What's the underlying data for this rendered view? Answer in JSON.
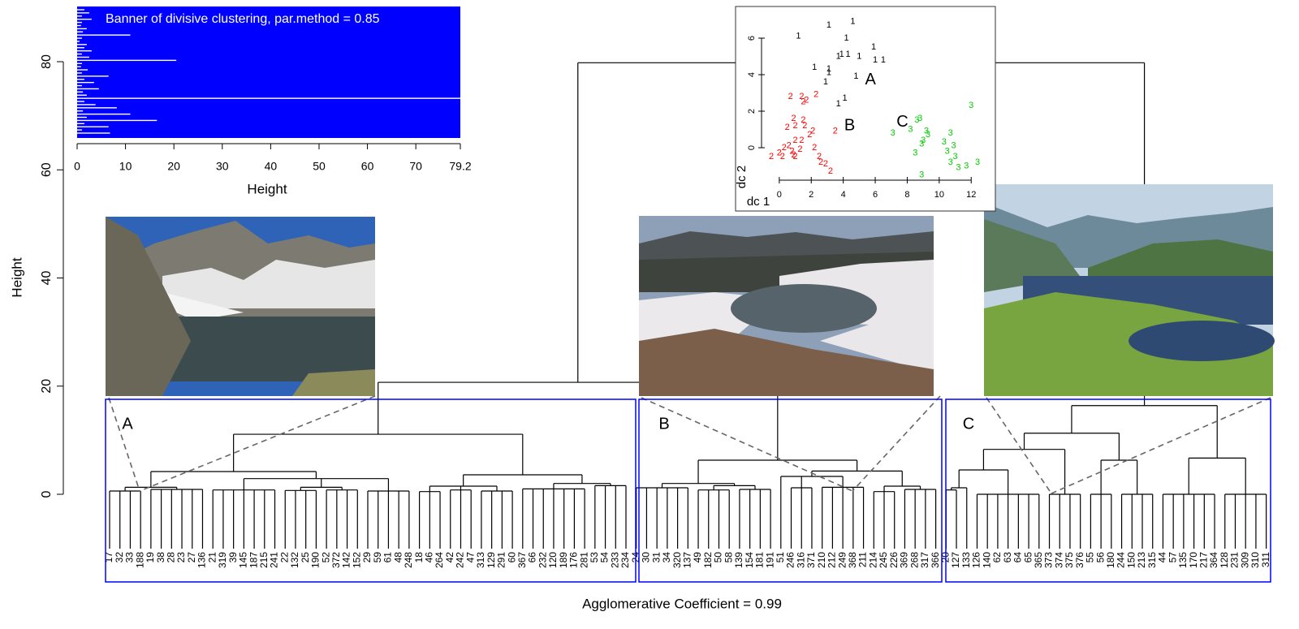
{
  "chart_data": [
    {
      "type": "dendrogram",
      "ylabel": "Height",
      "xlabel": "Agglomerative Coefficient =  0.99",
      "ylim": [
        0,
        80
      ],
      "yticks": [
        0,
        20,
        40,
        60,
        80
      ],
      "color": "#000000",
      "cluster_labels": [
        "A",
        "B",
        "C"
      ],
      "tree": {
        "height": 79.8,
        "children": [
          {
            "height": 20.7,
            "children": [
              {
                "height": 11.1,
                "children": [
                  {
                    "height": 4.2,
                    "children": [
                      {
                        "height": 1.3,
                        "children": [
                          {
                            "height": 0.6,
                            "children": [
                              "17",
                              "32",
                              "33",
                              "188"
                            ]
                          },
                          {
                            "height": 0.9,
                            "children": [
                              "19",
                              "38",
                              "28",
                              "23",
                              "27",
                              "136"
                            ]
                          }
                        ]
                      },
                      {
                        "height": 2.9,
                        "children": [
                          {
                            "height": 0.8,
                            "children": [
                              "21",
                              "319",
                              "39",
                              "145",
                              "187",
                              "215",
                              "241"
                            ]
                          },
                          {
                            "height": 1.3,
                            "children": [
                              {
                                "height": 0.7,
                                "children": [
                                  "22",
                                  "132",
                                  "25",
                                  "190"
                                ]
                              },
                              {
                                "height": 0.8,
                                "children": [
                                  "52",
                                  "372",
                                  "142",
                                  "152"
                                ]
                              }
                            ]
                          },
                          {
                            "height": 0.6,
                            "children": [
                              "29",
                              "59",
                              "61",
                              "48",
                              "248"
                            ]
                          }
                        ]
                      }
                    ]
                  },
                  {
                    "height": 3.6,
                    "children": [
                      {
                        "height": 1.5,
                        "children": [
                          {
                            "height": 0.5,
                            "children": [
                              "18",
                              "46",
                              "264"
                            ]
                          },
                          {
                            "height": 0.8,
                            "children": [
                              "42",
                              "242",
                              "47"
                            ]
                          },
                          {
                            "height": 0.6,
                            "children": [
                              "313",
                              "129",
                              "291",
                              "60"
                            ]
                          }
                        ]
                      },
                      {
                        "height": 2.0,
                        "children": [
                          {
                            "height": 1.0,
                            "children": [
                              "367",
                              "66",
                              "232",
                              "120",
                              "189",
                              "176",
                              "281"
                            ]
                          },
                          {
                            "height": 1.6,
                            "children": [
                              "53",
                              "54",
                              "233",
                              "234"
                            ]
                          }
                        ]
                      }
                    ]
                  }
                ]
              },
              {
                "height": 6.3,
                "children": [
                  {
                    "height": 2.0,
                    "children": [
                      {
                        "height": 1.2,
                        "children": [
                          "24",
                          "30",
                          "31",
                          "34",
                          "320",
                          "137"
                        ]
                      },
                      {
                        "height": 1.6,
                        "children": [
                          {
                            "height": 0.8,
                            "children": [
                              "49",
                              "182",
                              "50",
                              "58"
                            ]
                          },
                          {
                            "height": 0.9,
                            "children": [
                              "139",
                              "154",
                              "181",
                              "191"
                            ]
                          }
                        ]
                      }
                    ]
                  },
                  {
                    "height": 4.3,
                    "children": [
                      {
                        "height": 3.3,
                        "children": [
                          "51",
                          {
                            "height": 1.2,
                            "children": [
                              "246",
                              "316",
                              "371"
                            ]
                          },
                          {
                            "height": 1.3,
                            "children": [
                              "210",
                              "212",
                              "249",
                              "368",
                              "211"
                            ]
                          }
                        ]
                      },
                      {
                        "height": 1.5,
                        "children": [
                          {
                            "height": 0.5,
                            "children": [
                              "214",
                              "245",
                              "226"
                            ]
                          },
                          {
                            "height": 0.9,
                            "children": [
                              "369",
                              "268",
                              "317",
                              "366"
                            ]
                          }
                        ]
                      }
                    ]
                  }
                ]
              }
            ]
          },
          {
            "height": 16.4,
            "children": [
              {
                "height": 11.3,
                "children": [
                  {
                    "height": 8.3,
                    "children": [
                      {
                        "height": 4.5,
                        "children": [
                          {
                            "height": 1.2,
                            "children": [
                              {
                                "height": 0.8,
                                "children": [
                                  "20",
                                  "127"
                                ]
                              },
                              "133"
                            ]
                          },
                          {
                            "height": 0,
                            "children": [
                              "126",
                              "140",
                              "62",
                              "63",
                              "64",
                              "65",
                              "365"
                            ]
                          }
                        ]
                      },
                      {
                        "height": 0,
                        "children": [
                          "373",
                          "374",
                          "375",
                          "376"
                        ]
                      }
                    ]
                  },
                  {
                    "height": 6.3,
                    "children": [
                      {
                        "height": 0,
                        "children": [
                          "55",
                          "56",
                          "180"
                        ]
                      },
                      {
                        "height": 0,
                        "children": [
                          "244",
                          "150",
                          "213",
                          "315"
                        ]
                      }
                    ]
                  }
                ]
              },
              {
                "height": 6.7,
                "children": [
                  {
                    "height": 0,
                    "children": [
                      "44",
                      "57",
                      "135",
                      "170",
                      "217",
                      "364"
                    ]
                  },
                  {
                    "height": 0,
                    "children": [
                      "128",
                      "231",
                      "309",
                      "310",
                      "311"
                    ]
                  }
                ]
              }
            ]
          }
        ]
      }
    },
    {
      "type": "banner",
      "title": "Banner of  divisive clustering, par.method = 0.85",
      "xlabel": "Height",
      "xlim": [
        0,
        79.2
      ],
      "xticks": [
        0,
        10,
        20,
        30,
        40,
        50,
        60,
        70,
        79.2
      ],
      "color": "#0000ff",
      "bar_color": "#ffffff",
      "heights": [
        1.5,
        2.5,
        1,
        3,
        1,
        0.8,
        2,
        1.2,
        11,
        1,
        0.5,
        2,
        1.5,
        3,
        1,
        2.5,
        20.5,
        1,
        0.8,
        2.2,
        1,
        6.5,
        1.5,
        3.5,
        1,
        4.5,
        1.2,
        2,
        79.2,
        1.5,
        3.8,
        8.2,
        1.2,
        11,
        2,
        16.5,
        1.5,
        6.5,
        1,
        6.8
      ]
    },
    {
      "type": "scatter",
      "xlabel": "dc 1",
      "ylabel": "dc 2",
      "xlim": [
        -0.5,
        12.8
      ],
      "ylim": [
        -1.8,
        7.2
      ],
      "xticks": [
        0,
        2,
        4,
        6,
        8,
        10,
        12
      ],
      "yticks": [
        0,
        2,
        4,
        6
      ],
      "series": [
        {
          "name": "1",
          "color": "#000000",
          "x": [
            1.2,
            3.1,
            4.6,
            4.2,
            3.9,
            3.7,
            4.3,
            5.0,
            5.9,
            6.0,
            6.5,
            2.2,
            3.1,
            3.1,
            2.9,
            4.8,
            3.7,
            4.1
          ],
          "y": [
            6.1,
            6.7,
            6.9,
            6.0,
            5.1,
            5.0,
            5.1,
            5.0,
            5.5,
            4.8,
            4.8,
            4.4,
            4.3,
            4.1,
            3.6,
            3.9,
            2.4,
            2.7
          ]
        },
        {
          "name": "2",
          "color": "#ff0000",
          "x": [
            0.7,
            1.4,
            1.7,
            2.3,
            1.5,
            0.5,
            0.9,
            1.5,
            1.0,
            1.6,
            1.0,
            1.4,
            1.9,
            2.1,
            3.5,
            0.3,
            0.6,
            0.8,
            0.0,
            -0.5,
            0.2,
            0.9,
            1.3,
            2.2,
            2.5,
            2.6,
            2.9,
            3.2,
            1.0
          ],
          "y": [
            2.8,
            2.8,
            2.6,
            2.9,
            2.5,
            1.1,
            1.6,
            1.5,
            1.2,
            1.2,
            0.4,
            0.4,
            0.7,
            0.9,
            0.9,
            0.0,
            0.1,
            -0.2,
            -0.3,
            -0.5,
            -0.5,
            -0.4,
            -0.1,
            0.0,
            -0.5,
            -0.8,
            -0.9,
            -1.3,
            -0.5
          ]
        },
        {
          "name": "3",
          "color": "#00cc00",
          "x": [
            8.6,
            8.8,
            7.1,
            8.2,
            9.2,
            9.0,
            8.9,
            8.5,
            10.7,
            10.3,
            10.9,
            10.5,
            11.0,
            10.7,
            11.2,
            11.7,
            12.4,
            12.0,
            8.9,
            9.3
          ],
          "y": [
            1.5,
            1.6,
            0.8,
            1.0,
            0.9,
            0.4,
            0.2,
            -0.3,
            0.8,
            0.3,
            0.1,
            -0.2,
            -0.5,
            -0.8,
            -1.1,
            -1.0,
            -0.8,
            2.3,
            -1.5,
            0.7
          ]
        }
      ],
      "annotations": [
        {
          "text": "A",
          "x": 5.7,
          "y": 3.7
        },
        {
          "text": "B",
          "x": 4.4,
          "y": 1.2
        },
        {
          "text": "C",
          "x": 7.7,
          "y": 1.4
        }
      ]
    }
  ]
}
